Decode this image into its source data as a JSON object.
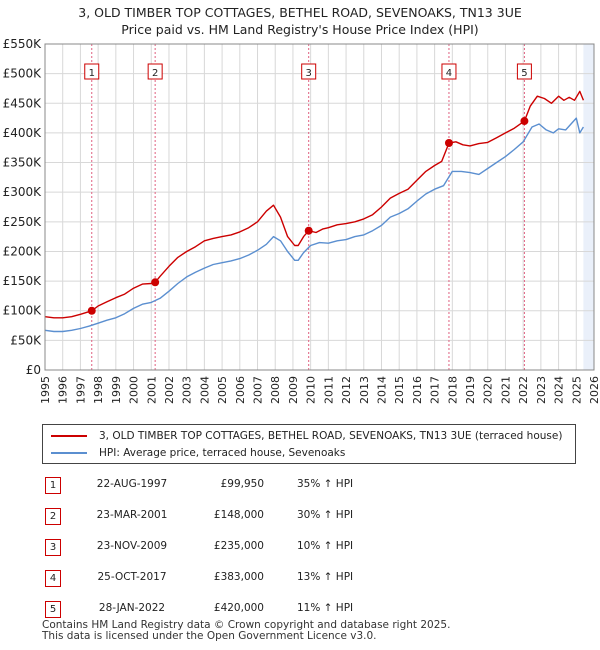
{
  "title": {
    "line1": "3, OLD TIMBER TOP COTTAGES, BETHEL ROAD, SEVENOAKS, TN13 3UE",
    "line2": "Price paid vs. HM Land Registry's House Price Index (HPI)"
  },
  "colors": {
    "property": "#cc0000",
    "hpi": "#5b8fd0",
    "marker_line": "#e06080",
    "shade": "#eaf0fa",
    "grid": "#d8d8d8"
  },
  "chart_data": {
    "type": "line",
    "title": "Price paid vs. HM Land Registry's House Price Index (HPI)",
    "xlabel": "",
    "ylabel": "",
    "xlim": [
      1995,
      2026
    ],
    "ylim": [
      0,
      550000
    ],
    "y_ticks": [
      0,
      50000,
      100000,
      150000,
      200000,
      250000,
      300000,
      350000,
      400000,
      450000,
      500000,
      550000
    ],
    "y_tick_labels": [
      "£0",
      "£50K",
      "£100K",
      "£150K",
      "£200K",
      "£250K",
      "£300K",
      "£350K",
      "£400K",
      "£450K",
      "£500K",
      "£550K"
    ],
    "x_ticks": [
      1995,
      1996,
      1997,
      1998,
      1999,
      2000,
      2001,
      2002,
      2003,
      2004,
      2005,
      2006,
      2007,
      2008,
      2009,
      2010,
      2011,
      2012,
      2013,
      2014,
      2015,
      2016,
      2017,
      2018,
      2019,
      2020,
      2021,
      2022,
      2023,
      2024,
      2025,
      2026
    ],
    "grid": true,
    "legend_position": "below",
    "series": [
      {
        "name": "3, OLD TIMBER TOP COTTAGES, BETHEL ROAD, SEVENOAKS, TN13 3UE (terraced house)",
        "color": "#cc0000",
        "x": [
          1995.0,
          1995.5,
          1996.0,
          1996.5,
          1997.0,
          1997.64,
          1998.0,
          1998.5,
          1999.0,
          1999.5,
          2000.0,
          2000.5,
          2001.0,
          2001.22,
          2001.5,
          2002.0,
          2002.5,
          2003.0,
          2003.5,
          2004.0,
          2004.5,
          2005.0,
          2005.5,
          2006.0,
          2006.5,
          2007.0,
          2007.5,
          2007.9,
          2008.3,
          2008.7,
          2009.1,
          2009.3,
          2009.6,
          2009.89,
          2010.3,
          2010.7,
          2011.0,
          2011.5,
          2012.0,
          2012.5,
          2013.0,
          2013.5,
          2014.0,
          2014.5,
          2015.0,
          2015.5,
          2016.0,
          2016.5,
          2017.0,
          2017.4,
          2017.81,
          2018.2,
          2018.6,
          2019.0,
          2019.5,
          2020.0,
          2020.5,
          2021.0,
          2021.5,
          2022.07,
          2022.4,
          2022.8,
          2023.2,
          2023.6,
          2024.0,
          2024.3,
          2024.6,
          2024.9,
          2025.2,
          2025.4
        ],
        "values": [
          90000,
          88000,
          88000,
          90000,
          94000,
          99950,
          108000,
          115000,
          122000,
          128000,
          138000,
          145000,
          146000,
          148000,
          158000,
          175000,
          190000,
          200000,
          208000,
          218000,
          222000,
          225000,
          228000,
          233000,
          240000,
          250000,
          268000,
          278000,
          258000,
          225000,
          210000,
          210000,
          225000,
          235000,
          232000,
          238000,
          240000,
          245000,
          247000,
          250000,
          255000,
          262000,
          275000,
          290000,
          298000,
          305000,
          320000,
          335000,
          345000,
          352000,
          383000,
          385000,
          380000,
          378000,
          382000,
          384000,
          392000,
          400000,
          408000,
          420000,
          445000,
          462000,
          458000,
          450000,
          462000,
          455000,
          460000,
          455000,
          470000,
          455000
        ]
      },
      {
        "name": "HPI: Average price, terraced house, Sevenoaks",
        "color": "#5b8fd0",
        "x": [
          1995.0,
          1995.5,
          1996.0,
          1996.5,
          1997.0,
          1997.5,
          1998.0,
          1998.5,
          1999.0,
          1999.5,
          2000.0,
          2000.5,
          2001.0,
          2001.5,
          2002.0,
          2002.5,
          2003.0,
          2003.5,
          2004.0,
          2004.5,
          2005.0,
          2005.5,
          2006.0,
          2006.5,
          2007.0,
          2007.5,
          2007.9,
          2008.3,
          2008.7,
          2009.1,
          2009.3,
          2009.6,
          2010.0,
          2010.5,
          2011.0,
          2011.5,
          2012.0,
          2012.5,
          2013.0,
          2013.5,
          2014.0,
          2014.5,
          2015.0,
          2015.5,
          2016.0,
          2016.5,
          2017.0,
          2017.5,
          2018.0,
          2018.5,
          2019.0,
          2019.5,
          2020.0,
          2020.5,
          2021.0,
          2021.5,
          2022.0,
          2022.5,
          2022.9,
          2023.3,
          2023.7,
          2024.0,
          2024.4,
          2024.7,
          2025.0,
          2025.2,
          2025.4
        ],
        "values": [
          67000,
          65000,
          65000,
          67000,
          70000,
          74000,
          79000,
          84000,
          88000,
          95000,
          104000,
          111000,
          114000,
          121000,
          133000,
          146000,
          157000,
          165000,
          172000,
          178000,
          181000,
          184000,
          188000,
          194000,
          202000,
          212000,
          225000,
          218000,
          200000,
          185000,
          185000,
          198000,
          210000,
          215000,
          214000,
          218000,
          220000,
          225000,
          228000,
          235000,
          244000,
          258000,
          264000,
          272000,
          285000,
          297000,
          305000,
          311000,
          335000,
          335000,
          333000,
          330000,
          340000,
          350000,
          360000,
          372000,
          385000,
          410000,
          415000,
          405000,
          400000,
          407000,
          405000,
          415000,
          425000,
          400000,
          410000
        ]
      }
    ],
    "sale_points": [
      {
        "label": "1",
        "x": 1997.64,
        "value": 99950
      },
      {
        "label": "2",
        "x": 2001.22,
        "value": 148000
      },
      {
        "label": "3",
        "x": 2009.89,
        "value": 235000
      },
      {
        "label": "4",
        "x": 2017.81,
        "value": 383000
      },
      {
        "label": "5",
        "x": 2022.07,
        "value": 420000
      }
    ],
    "shaded_region_start": 2025.4
  },
  "legend": {
    "property_label": "3, OLD TIMBER TOP COTTAGES, BETHEL ROAD, SEVENOAKS, TN13 3UE (terraced house)",
    "hpi_label": "HPI: Average price, terraced house, Sevenoaks"
  },
  "sales": [
    {
      "num": "1",
      "date": "22-AUG-1997",
      "price": "£99,950",
      "hpi": "35% ↑ HPI"
    },
    {
      "num": "2",
      "date": "23-MAR-2001",
      "price": "£148,000",
      "hpi": "30% ↑ HPI"
    },
    {
      "num": "3",
      "date": "23-NOV-2009",
      "price": "£235,000",
      "hpi": "10% ↑ HPI"
    },
    {
      "num": "4",
      "date": "25-OCT-2017",
      "price": "£383,000",
      "hpi": "13% ↑ HPI"
    },
    {
      "num": "5",
      "date": "28-JAN-2022",
      "price": "£420,000",
      "hpi": "11% ↑ HPI"
    }
  ],
  "footer": {
    "line1": "Contains HM Land Registry data © Crown copyright and database right 2025.",
    "line2": "This data is licensed under the Open Government Licence v3.0."
  }
}
